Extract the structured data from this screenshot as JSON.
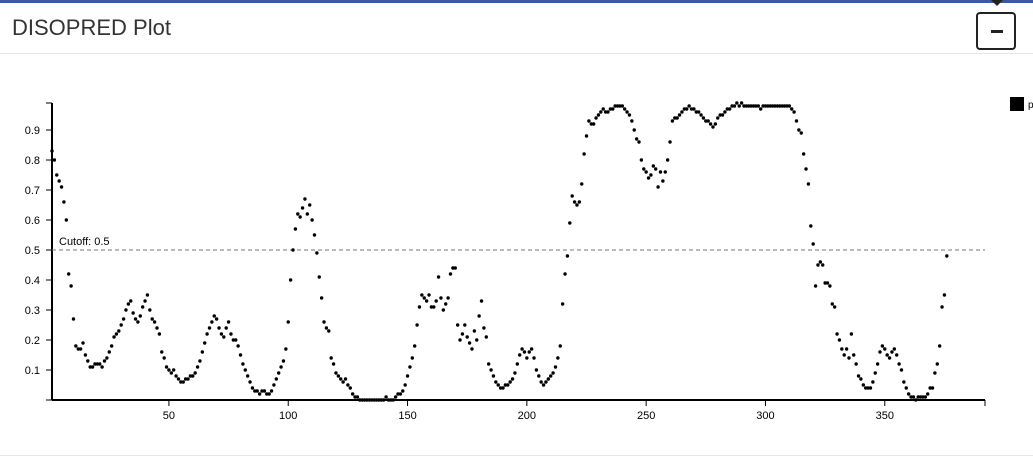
{
  "panel": {
    "title": "DISOPRED Plot"
  },
  "legend": {
    "label": "p"
  },
  "chart_data": {
    "type": "scatter",
    "title": "",
    "xlabel": "",
    "ylabel": "",
    "xlim": [
      1,
      392
    ],
    "ylim": [
      0,
      0.99
    ],
    "x_ticks": [
      50,
      100,
      150,
      200,
      250,
      300,
      350
    ],
    "y_ticks": [
      0.1,
      0.2,
      0.3,
      0.4,
      0.5,
      0.6,
      0.7,
      0.8,
      0.9
    ],
    "y_tick_labels": [
      "0.1",
      "0.2",
      "0.3",
      "0.4",
      "0.5",
      "0.6",
      "0.7",
      "0.8",
      "0.9"
    ],
    "cutoff": {
      "value": 0.5,
      "label": "Cutoff: 0.5"
    },
    "series": [
      {
        "x_start": 1,
        "values": [
          0.83,
          0.8,
          0.75,
          0.73,
          0.71,
          0.66,
          0.6,
          0.42,
          0.38,
          0.27,
          0.18,
          0.17,
          0.17,
          0.19,
          0.15,
          0.13,
          0.11,
          0.11,
          0.12,
          0.12,
          0.12,
          0.11,
          0.13,
          0.14,
          0.16,
          0.18,
          0.21,
          0.22,
          0.23,
          0.25,
          0.27,
          0.3,
          0.32,
          0.33,
          0.29,
          0.27,
          0.26,
          0.28,
          0.31,
          0.33,
          0.35,
          0.3,
          0.27,
          0.26,
          0.24,
          0.22,
          0.16,
          0.14,
          0.11,
          0.1,
          0.09,
          0.1,
          0.08,
          0.07,
          0.06,
          0.06,
          0.07,
          0.07,
          0.08,
          0.08,
          0.09,
          0.11,
          0.13,
          0.16,
          0.19,
          0.22,
          0.24,
          0.26,
          0.28,
          0.27,
          0.24,
          0.22,
          0.21,
          0.24,
          0.26,
          0.22,
          0.2,
          0.2,
          0.18,
          0.15,
          0.12,
          0.1,
          0.08,
          0.06,
          0.04,
          0.03,
          0.03,
          0.02,
          0.03,
          0.03,
          0.02,
          0.02,
          0.03,
          0.05,
          0.07,
          0.09,
          0.11,
          0.13,
          0.17,
          0.26,
          0.4,
          0.5,
          0.57,
          0.62,
          0.61,
          0.64,
          0.67,
          0.62,
          0.65,
          0.6,
          0.55,
          0.49,
          0.41,
          0.34,
          0.26,
          0.24,
          0.23,
          0.14,
          0.12,
          0.09,
          0.08,
          0.07,
          0.06,
          0.07,
          0.05,
          0.04,
          0.02,
          0.01,
          0.01,
          0.0,
          0.0,
          0.0,
          0.0,
          0.0,
          0.0,
          0.0,
          0.0,
          0.0,
          0.0,
          0.0,
          0.01,
          0.0,
          0.0,
          0.0,
          0.01,
          0.02,
          0.02,
          0.03,
          0.05,
          0.08,
          0.11,
          0.14,
          0.18,
          0.25,
          0.31,
          0.35,
          0.34,
          0.33,
          0.35,
          0.31,
          0.31,
          0.33,
          0.41,
          0.34,
          0.3,
          0.32,
          0.34,
          0.42,
          0.44,
          0.44,
          0.25,
          0.2,
          0.22,
          0.25,
          0.21,
          0.19,
          0.17,
          0.23,
          0.2,
          0.28,
          0.33,
          0.24,
          0.21,
          0.12,
          0.1,
          0.08,
          0.06,
          0.05,
          0.04,
          0.04,
          0.05,
          0.05,
          0.06,
          0.07,
          0.09,
          0.12,
          0.15,
          0.17,
          0.16,
          0.14,
          0.16,
          0.17,
          0.14,
          0.1,
          0.08,
          0.06,
          0.05,
          0.06,
          0.07,
          0.08,
          0.09,
          0.11,
          0.14,
          0.18,
          0.32,
          0.42,
          0.48,
          0.59,
          0.68,
          0.66,
          0.65,
          0.66,
          0.72,
          0.82,
          0.88,
          0.93,
          0.92,
          0.92,
          0.94,
          0.95,
          0.96,
          0.97,
          0.96,
          0.96,
          0.97,
          0.97,
          0.98,
          0.98,
          0.98,
          0.98,
          0.97,
          0.96,
          0.95,
          0.93,
          0.9,
          0.87,
          0.86,
          0.8,
          0.77,
          0.76,
          0.74,
          0.75,
          0.78,
          0.77,
          0.71,
          0.76,
          0.73,
          0.76,
          0.8,
          0.86,
          0.93,
          0.94,
          0.94,
          0.95,
          0.96,
          0.97,
          0.97,
          0.98,
          0.97,
          0.97,
          0.96,
          0.96,
          0.95,
          0.94,
          0.93,
          0.93,
          0.92,
          0.91,
          0.92,
          0.94,
          0.95,
          0.95,
          0.96,
          0.97,
          0.97,
          0.98,
          0.98,
          0.99,
          0.98,
          0.99,
          0.98,
          0.98,
          0.98,
          0.98,
          0.98,
          0.98,
          0.98,
          0.97,
          0.98,
          0.98,
          0.98,
          0.98,
          0.98,
          0.98,
          0.98,
          0.98,
          0.98,
          0.98,
          0.98,
          0.98,
          0.97,
          0.96,
          0.93,
          0.9,
          0.89,
          0.82,
          0.77,
          0.72,
          0.58,
          0.52,
          0.38,
          0.45,
          0.46,
          0.45,
          0.39,
          0.39,
          0.38,
          0.32,
          0.31,
          0.22,
          0.2,
          0.17,
          0.15,
          0.17,
          0.14,
          0.22,
          0.15,
          0.12,
          0.08,
          0.07,
          0.05,
          0.04,
          0.04,
          0.04,
          0.06,
          0.09,
          0.12,
          0.16,
          0.18,
          0.17,
          0.15,
          0.14,
          0.16,
          0.17,
          0.15,
          0.12,
          0.1,
          0.06,
          0.04,
          0.02,
          0.01,
          0.01,
          0.0,
          0.01,
          0.01,
          0.01,
          0.01,
          0.02,
          0.04,
          0.04,
          0.09,
          0.12,
          0.18,
          0.31,
          0.35,
          0.48
        ]
      }
    ],
    "grid": false
  }
}
